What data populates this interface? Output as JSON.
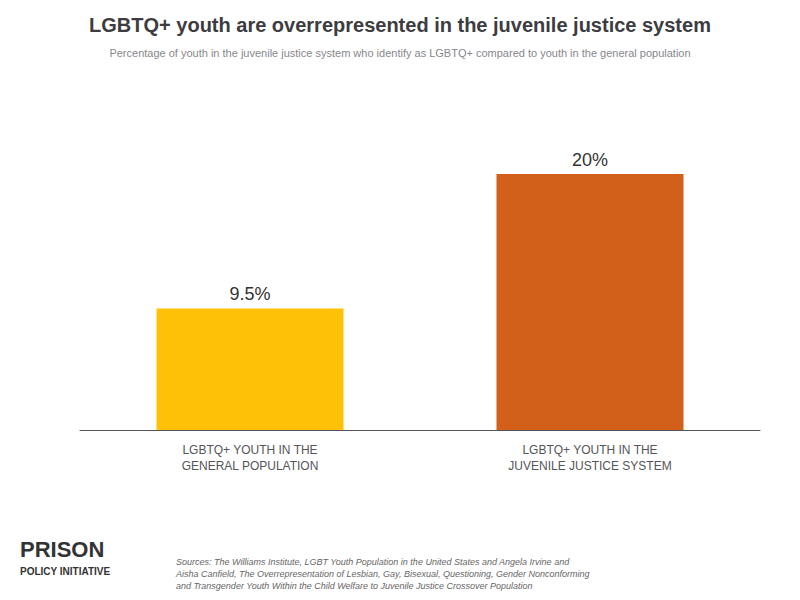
{
  "chart_data": {
    "type": "bar",
    "title": "LGBTQ+ youth are overrepresented in the juvenile justice system",
    "subtitle": "Percentage of youth in the juvenile justice system who identify as LGBTQ+ compared to youth in the general population",
    "categories": [
      "LGBTQ+ YOUTH IN THE\nGENERAL POPULATION",
      "LGBTQ+ YOUTH IN THE\nJUVENILE JUSTICE SYSTEM"
    ],
    "values": [
      9.5,
      20.0
    ],
    "value_labels": [
      "9.5%",
      "20%"
    ],
    "data_labels": true,
    "colors": [
      "#FFC107",
      "#D2601A"
    ],
    "ylim": [
      0,
      25
    ],
    "tick_labels": "x",
    "grid": false,
    "annotations": [
      "Sources: The Williams Institute, LGBT Youth Population in the United States and Angela Irvine and\nAisha Canfield, The Overrepresentation of Lesbian, Gay, Bisexual, Questioning, Gender Nonconforming\nand Transgender Youth Within the Child Welfare to Juvenile Justice Crossover Population",
      "PRISON",
      "POLICY INITIATIVE"
    ]
  }
}
